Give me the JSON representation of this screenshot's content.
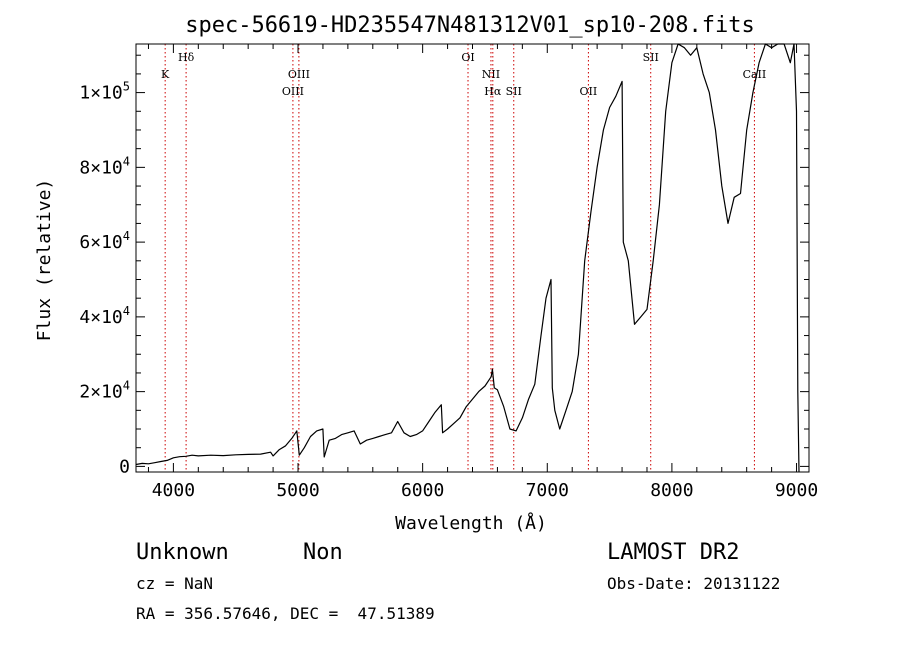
{
  "chart_data": {
    "type": "line",
    "title": "spec-56619-HD235547N481312V01_sp10-208.fits",
    "xlabel": "Wavelength (Å)",
    "ylabel": "Flux (relative)",
    "xlim": [
      3700,
      9100
    ],
    "ylim": [
      -1500,
      113000
    ],
    "x_ticks": [
      {
        "value": 4000,
        "label": "4000"
      },
      {
        "value": 5000,
        "label": "5000"
      },
      {
        "value": 6000,
        "label": "6000"
      },
      {
        "value": 7000,
        "label": "7000"
      },
      {
        "value": 8000,
        "label": "8000"
      },
      {
        "value": 9000,
        "label": "9000"
      }
    ],
    "y_ticks": [
      {
        "value": 0,
        "mantissa": "0",
        "exponent": ""
      },
      {
        "value": 20000,
        "mantissa": "2×10",
        "exponent": "4"
      },
      {
        "value": 40000,
        "mantissa": "4×10",
        "exponent": "4"
      },
      {
        "value": 60000,
        "mantissa": "6×10",
        "exponent": "4"
      },
      {
        "value": 80000,
        "mantissa": "8×10",
        "exponent": "4"
      },
      {
        "value": 100000,
        "mantissa": "1×10",
        "exponent": "5"
      }
    ],
    "spectral_lines": [
      {
        "label": "K",
        "x": 3934,
        "row": 2
      },
      {
        "label": "Hδ",
        "x": 4102,
        "row": 1
      },
      {
        "label": "OIII",
        "x": 4959,
        "row": 3
      },
      {
        "label": "OIII",
        "x": 5007,
        "row": 2
      },
      {
        "label": "OI",
        "x": 6364,
        "row": 1
      },
      {
        "label": "NII",
        "x": 6548,
        "row": 2
      },
      {
        "label": "Hα",
        "x": 6563,
        "row": 3
      },
      {
        "label": "SII",
        "x": 6731,
        "row": 3
      },
      {
        "label": "OII",
        "x": 7330,
        "row": 3
      },
      {
        "label": "SII",
        "x": 7830,
        "row": 1
      },
      {
        "label": "CaII",
        "x": 8662,
        "row": 2
      }
    ],
    "line_marker_color": "#cc0000",
    "series": [
      {
        "color": "#000000",
        "points": [
          [
            3700,
            500
          ],
          [
            3750,
            800
          ],
          [
            3800,
            700
          ],
          [
            3850,
            1000
          ],
          [
            3900,
            1300
          ],
          [
            3950,
            1600
          ],
          [
            4000,
            2300
          ],
          [
            4050,
            2600
          ],
          [
            4100,
            2700
          ],
          [
            4150,
            3000
          ],
          [
            4200,
            2800
          ],
          [
            4300,
            3000
          ],
          [
            4400,
            2900
          ],
          [
            4500,
            3100
          ],
          [
            4600,
            3200
          ],
          [
            4700,
            3300
          ],
          [
            4780,
            3800
          ],
          [
            4800,
            2800
          ],
          [
            4850,
            4500
          ],
          [
            4900,
            5500
          ],
          [
            4950,
            7500
          ],
          [
            4990,
            9500
          ],
          [
            5010,
            3000
          ],
          [
            5050,
            5000
          ],
          [
            5100,
            8000
          ],
          [
            5150,
            9500
          ],
          [
            5200,
            10000
          ],
          [
            5210,
            2500
          ],
          [
            5250,
            7000
          ],
          [
            5300,
            7500
          ],
          [
            5350,
            8500
          ],
          [
            5400,
            9000
          ],
          [
            5450,
            9500
          ],
          [
            5500,
            6000
          ],
          [
            5550,
            7000
          ],
          [
            5600,
            7500
          ],
          [
            5650,
            8000
          ],
          [
            5700,
            8500
          ],
          [
            5750,
            9000
          ],
          [
            5800,
            12000
          ],
          [
            5850,
            9000
          ],
          [
            5900,
            8000
          ],
          [
            5950,
            8500
          ],
          [
            6000,
            9500
          ],
          [
            6050,
            12000
          ],
          [
            6100,
            14500
          ],
          [
            6150,
            16500
          ],
          [
            6160,
            9000
          ],
          [
            6200,
            10000
          ],
          [
            6250,
            11500
          ],
          [
            6300,
            13000
          ],
          [
            6350,
            16000
          ],
          [
            6400,
            18000
          ],
          [
            6450,
            20000
          ],
          [
            6500,
            21500
          ],
          [
            6550,
            24000
          ],
          [
            6560,
            26000
          ],
          [
            6575,
            21000
          ],
          [
            6600,
            20500
          ],
          [
            6650,
            16000
          ],
          [
            6700,
            10000
          ],
          [
            6750,
            9500
          ],
          [
            6800,
            13000
          ],
          [
            6850,
            18000
          ],
          [
            6900,
            22000
          ],
          [
            6950,
            35000
          ],
          [
            6990,
            45000
          ],
          [
            7030,
            50000
          ],
          [
            7040,
            21000
          ],
          [
            7060,
            15000
          ],
          [
            7100,
            10000
          ],
          [
            7150,
            15000
          ],
          [
            7200,
            20000
          ],
          [
            7250,
            30000
          ],
          [
            7300,
            55000
          ],
          [
            7350,
            68000
          ],
          [
            7400,
            80000
          ],
          [
            7450,
            90000
          ],
          [
            7500,
            96000
          ],
          [
            7550,
            99000
          ],
          [
            7600,
            103000
          ],
          [
            7610,
            60000
          ],
          [
            7650,
            55000
          ],
          [
            7700,
            38000
          ],
          [
            7750,
            40000
          ],
          [
            7800,
            42000
          ],
          [
            7850,
            55000
          ],
          [
            7900,
            70000
          ],
          [
            7950,
            95000
          ],
          [
            8000,
            108000
          ],
          [
            8050,
            113000
          ],
          [
            8100,
            112000
          ],
          [
            8150,
            110000
          ],
          [
            8200,
            112000
          ],
          [
            8250,
            105000
          ],
          [
            8300,
            100000
          ],
          [
            8350,
            90000
          ],
          [
            8400,
            75000
          ],
          [
            8450,
            65000
          ],
          [
            8500,
            72000
          ],
          [
            8550,
            73000
          ],
          [
            8600,
            90000
          ],
          [
            8650,
            100000
          ],
          [
            8700,
            108000
          ],
          [
            8750,
            113000
          ],
          [
            8800,
            112000
          ],
          [
            8850,
            113000
          ],
          [
            8900,
            113000
          ],
          [
            8950,
            108000
          ],
          [
            8980,
            113000
          ],
          [
            9000,
            95000
          ],
          [
            9010,
            20000
          ],
          [
            9020,
            -1500
          ]
        ]
      }
    ]
  },
  "info": {
    "object_class": "Unknown",
    "object_subclass": "Non",
    "survey": "LAMOST DR2",
    "redshift": "cz = NaN",
    "obs_date": "Obs-Date: 20131122",
    "coords": "RA = 356.57646, DEC =  47.51389"
  }
}
